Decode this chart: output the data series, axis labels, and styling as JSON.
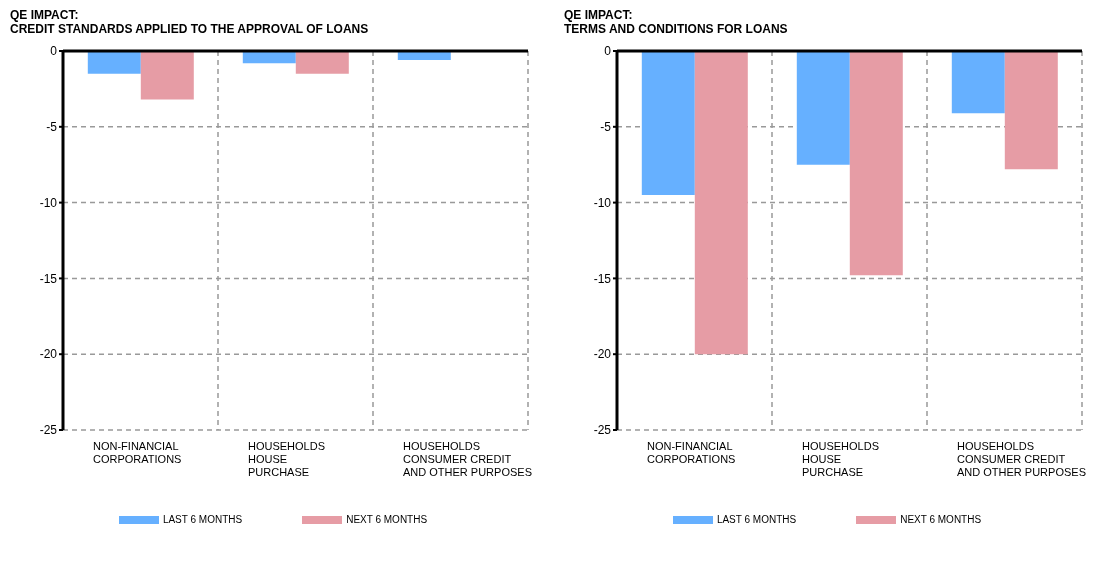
{
  "chart_data": [
    {
      "type": "bar",
      "title": "QE IMPACT:",
      "subtitle": "CREDIT STANDARDS APPLIED TO THE APPROVAL OF LOANS",
      "categories": [
        "NON-FINANCIAL\nCORPORATIONS",
        "HOUSEHOLDS\nHOUSE\nPURCHASE",
        "HOUSEHOLDS\nCONSUMER CREDIT\nAND OTHER PURPOSES"
      ],
      "series": [
        {
          "name": "LAST 6 MONTHS",
          "color": "#66b0ff",
          "values": [
            -1.5,
            -0.8,
            -0.6
          ]
        },
        {
          "name": "NEXT 6 MONTHS",
          "color": "#e69ca5",
          "values": [
            -3.2,
            -1.5,
            null
          ]
        }
      ],
      "ylim": [
        -25,
        0
      ],
      "yticks": [
        -25,
        -20,
        -15,
        -10,
        -5,
        0
      ],
      "grid": true,
      "legend": "bottom"
    },
    {
      "type": "bar",
      "title": "QE IMPACT:",
      "subtitle": "TERMS AND CONDITIONS FOR LOANS",
      "categories": [
        "NON-FINANCIAL\nCORPORATIONS",
        "HOUSEHOLDS\nHOUSE\nPURCHASE",
        "HOUSEHOLDS\nCONSUMER CREDIT\nAND OTHER PURPOSES"
      ],
      "series": [
        {
          "name": "LAST 6 MONTHS",
          "color": "#66b0ff",
          "values": [
            -9.5,
            -7.5,
            -4.1
          ]
        },
        {
          "name": "NEXT 6 MONTHS",
          "color": "#e69ca5",
          "values": [
            -20,
            -14.8,
            -7.8
          ]
        }
      ],
      "ylim": [
        -25,
        0
      ],
      "yticks": [
        -25,
        -20,
        -15,
        -10,
        -5,
        0
      ],
      "grid": true,
      "legend": "bottom"
    }
  ]
}
